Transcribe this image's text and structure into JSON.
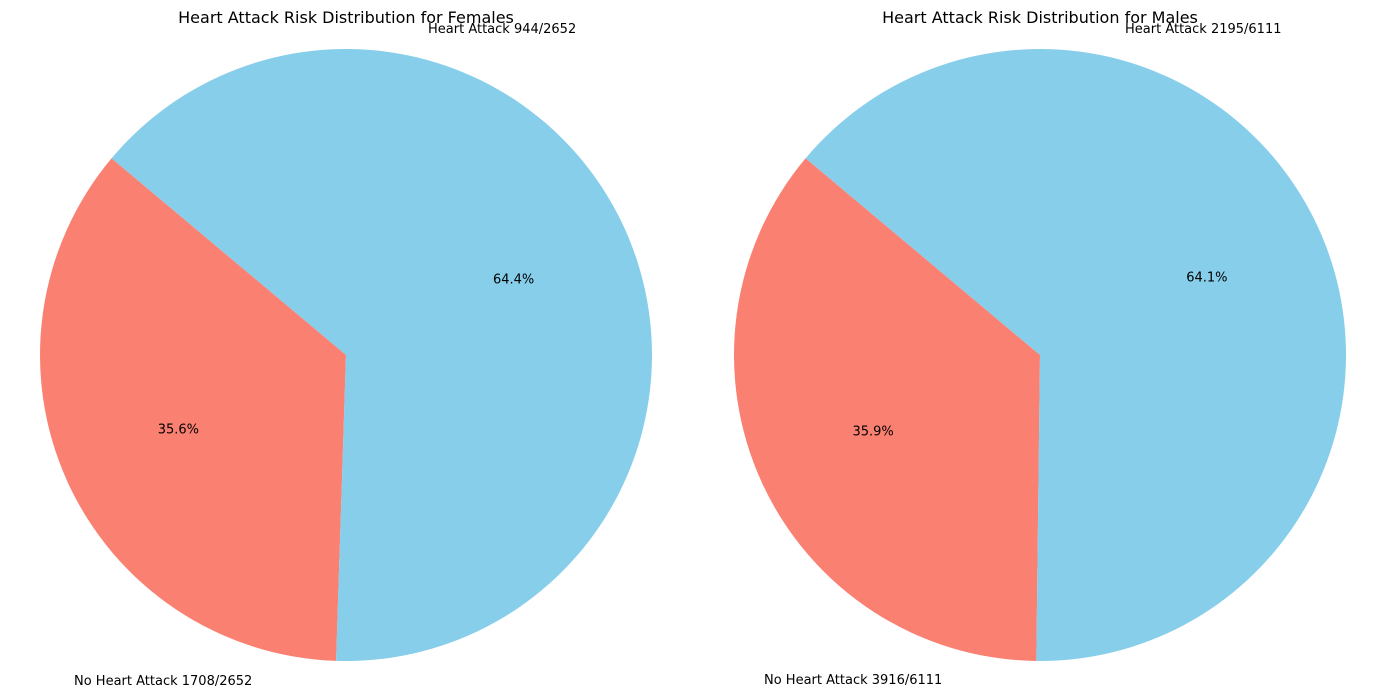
{
  "chart_data": [
    {
      "type": "pie",
      "title": "Heart Attack Risk Distribution for Females",
      "start_angle_deg": 140,
      "slices": [
        {
          "label": "Heart Attack 944/2652",
          "value": 944,
          "percent_label": "35.6%",
          "color": "#FA8072"
        },
        {
          "label": "No Heart Attack 1708/2652",
          "value": 1708,
          "percent_label": "64.4%",
          "color": "#87CEEB"
        }
      ]
    },
    {
      "type": "pie",
      "title": "Heart Attack Risk Distribution for Males",
      "start_angle_deg": 140,
      "slices": [
        {
          "label": "Heart Attack 2195/6111",
          "value": 2195,
          "percent_label": "35.9%",
          "color": "#FA8072"
        },
        {
          "label": "No Heart Attack 3916/6111",
          "value": 3916,
          "percent_label": "64.1%",
          "color": "#87CEEB"
        }
      ]
    }
  ]
}
